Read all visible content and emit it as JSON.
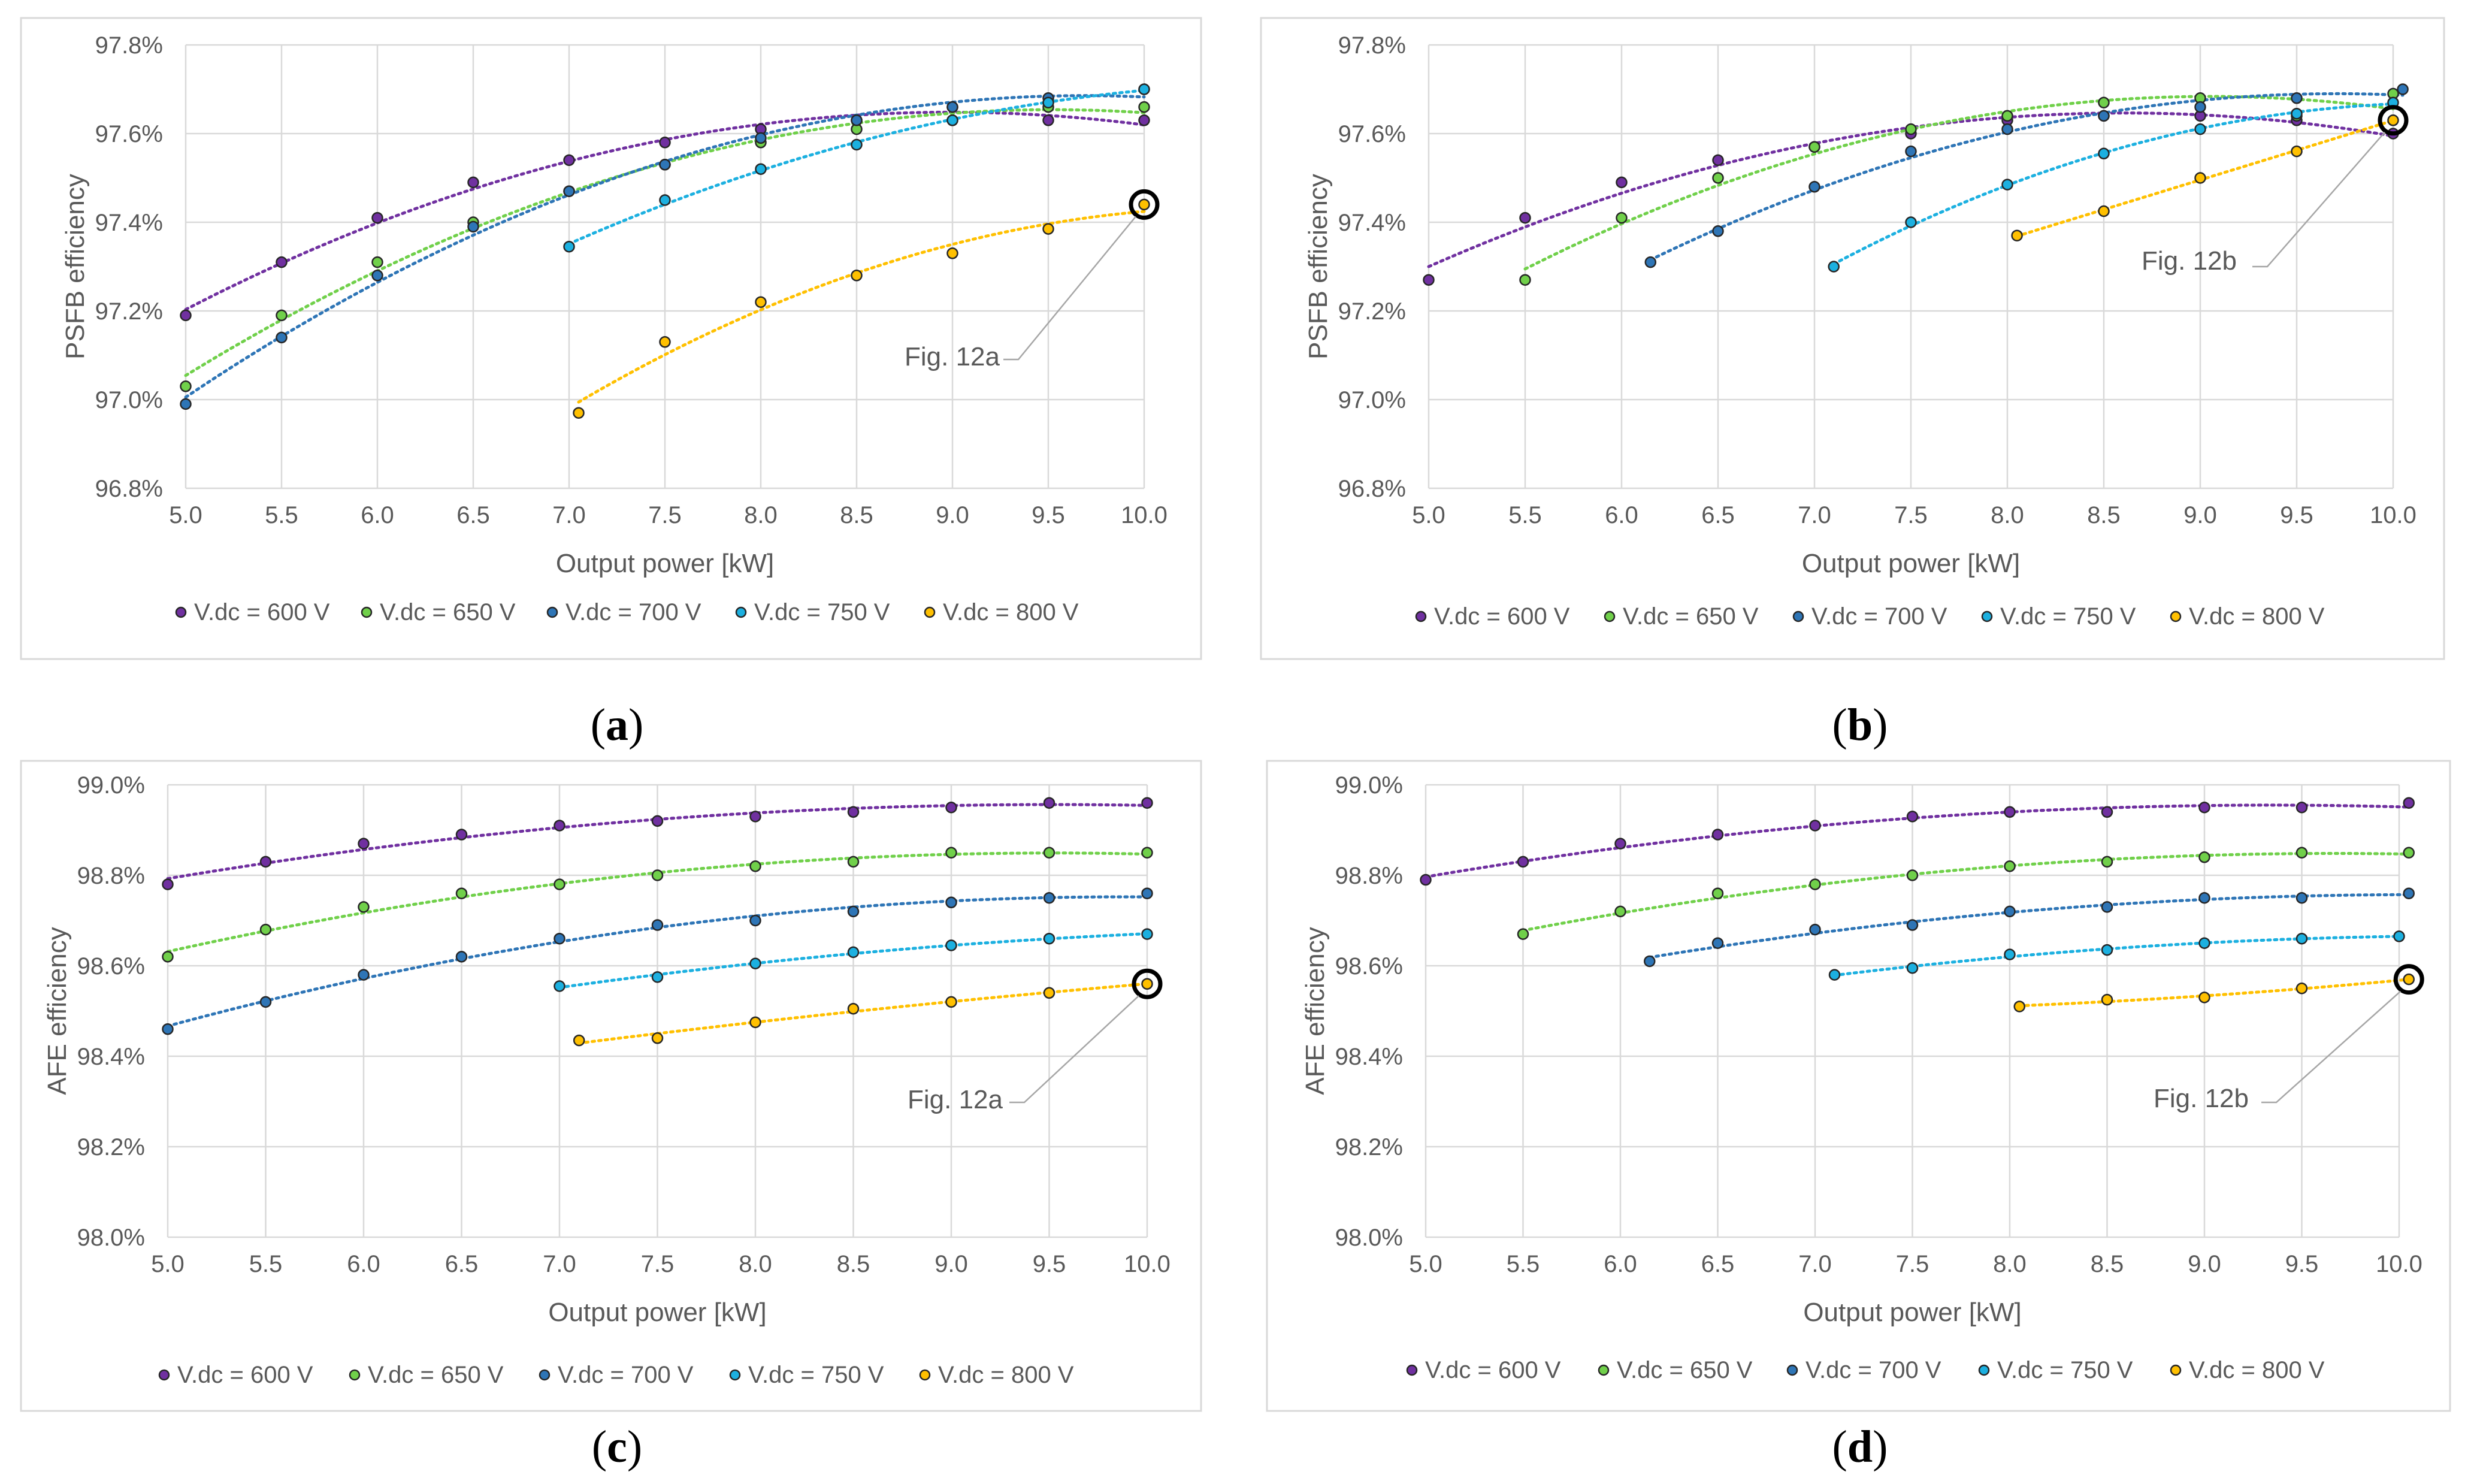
{
  "colors": {
    "V.dc = 600 V": "#7030a0",
    "V.dc = 650 V": "#70d04a",
    "V.dc = 700 V": "#2e75b6",
    "V.dc = 750 V": "#1cb0e0",
    "V.dc = 800 V": "#ffc000"
  },
  "chart_data": [
    {
      "id": "a",
      "type": "scatter",
      "caption": "a",
      "xlabel": "Output power [kW]",
      "ylabel": "PSFB efficiency",
      "xlim": [
        5.0,
        10.0
      ],
      "ylim": [
        96.8,
        97.8
      ],
      "xticks": [
        "5.0",
        "5.5",
        "6.0",
        "6.5",
        "7.0",
        "7.5",
        "8.0",
        "8.5",
        "9.0",
        "9.5",
        "10.0"
      ],
      "yticks": [
        "96.8%",
        "97.0%",
        "97.2%",
        "97.4%",
        "97.6%",
        "97.8%"
      ],
      "legend": [
        "V.dc = 600 V",
        "V.dc = 650 V",
        "V.dc = 700 V",
        "V.dc = 750 V",
        "V.dc = 800 V"
      ],
      "annotation": {
        "text": "Fig. 12a",
        "x": 10.0,
        "y": 97.44
      },
      "series": [
        {
          "name": "V.dc = 600 V",
          "x": [
            5.0,
            5.5,
            6.0,
            6.5,
            7.0,
            7.5,
            8.0,
            8.5,
            9.0,
            9.5,
            10.0
          ],
          "y": [
            97.19,
            97.31,
            97.41,
            97.49,
            97.54,
            97.58,
            97.61,
            97.63,
            97.66,
            97.63,
            97.63
          ]
        },
        {
          "name": "V.dc = 650 V",
          "x": [
            5.0,
            5.5,
            6.0,
            6.5,
            7.0,
            7.5,
            8.0,
            8.5,
            9.0,
            9.5,
            10.0
          ],
          "y": [
            97.03,
            97.19,
            97.31,
            97.4,
            97.47,
            97.53,
            97.58,
            97.61,
            97.63,
            97.66,
            97.66
          ]
        },
        {
          "name": "V.dc = 700 V",
          "x": [
            5.0,
            5.5,
            6.0,
            6.5,
            7.0,
            7.5,
            8.0,
            8.5,
            9.0,
            9.5,
            10.0
          ],
          "y": [
            96.99,
            97.14,
            97.28,
            97.39,
            97.47,
            97.53,
            97.59,
            97.63,
            97.66,
            97.68,
            97.7
          ]
        },
        {
          "name": "V.dc = 750 V",
          "x": [
            7.0,
            7.5,
            8.0,
            8.5,
            9.0,
            9.5,
            10.0
          ],
          "y": [
            97.345,
            97.45,
            97.52,
            97.575,
            97.63,
            97.67,
            97.7
          ]
        },
        {
          "name": "V.dc = 800 V",
          "x": [
            7.05,
            7.5,
            8.0,
            8.5,
            9.0,
            9.5,
            10.0
          ],
          "y": [
            96.97,
            97.13,
            97.22,
            97.28,
            97.33,
            97.385,
            97.44
          ]
        }
      ]
    },
    {
      "id": "b",
      "type": "scatter",
      "caption": "b",
      "xlabel": "Output power [kW]",
      "ylabel": "PSFB efficiency",
      "xlim": [
        5.0,
        10.0
      ],
      "ylim": [
        96.8,
        97.8
      ],
      "xticks": [
        "5.0",
        "5.5",
        "6.0",
        "6.5",
        "7.0",
        "7.5",
        "8.0",
        "8.5",
        "9.0",
        "9.5",
        "10.0"
      ],
      "yticks": [
        "96.8%",
        "97.0%",
        "97.2%",
        "97.4%",
        "97.6%",
        "97.8%"
      ],
      "legend": [
        "V.dc = 600 V",
        "V.dc = 650 V",
        "V.dc = 700 V",
        "V.dc = 750 V",
        "V.dc = 800 V"
      ],
      "annotation": {
        "text": "Fig. 12b",
        "x": 10.0,
        "y": 97.63
      },
      "series": [
        {
          "name": "V.dc = 600 V",
          "x": [
            5.0,
            5.5,
            6.0,
            6.5,
            7.0,
            7.5,
            8.0,
            8.5,
            9.0,
            9.5,
            10.0
          ],
          "y": [
            97.27,
            97.41,
            97.49,
            97.54,
            97.57,
            97.6,
            97.63,
            97.64,
            97.64,
            97.63,
            97.6
          ]
        },
        {
          "name": "V.dc = 650 V",
          "x": [
            5.5,
            6.0,
            6.5,
            7.0,
            7.5,
            8.0,
            8.5,
            9.0,
            9.5,
            10.0
          ],
          "y": [
            97.27,
            97.41,
            97.5,
            97.57,
            97.61,
            97.64,
            97.67,
            97.68,
            97.64,
            97.69
          ]
        },
        {
          "name": "V.dc = 700 V",
          "x": [
            6.15,
            6.5,
            7.0,
            7.5,
            8.0,
            8.5,
            9.0,
            9.5,
            10.05
          ],
          "y": [
            97.31,
            97.38,
            97.48,
            97.56,
            97.61,
            97.64,
            97.66,
            97.68,
            97.7
          ]
        },
        {
          "name": "V.dc = 750 V",
          "x": [
            7.1,
            7.5,
            8.0,
            8.5,
            9.0,
            9.5,
            10.0
          ],
          "y": [
            97.3,
            97.4,
            97.485,
            97.555,
            97.61,
            97.645,
            97.67
          ]
        },
        {
          "name": "V.dc = 800 V",
          "x": [
            8.05,
            8.5,
            9.0,
            9.5,
            10.0
          ],
          "y": [
            97.37,
            97.425,
            97.5,
            97.56,
            97.63
          ]
        }
      ]
    },
    {
      "id": "c",
      "type": "scatter",
      "caption": "c",
      "xlabel": "Output power [kW]",
      "ylabel": "AFE efficiency",
      "xlim": [
        5.0,
        10.0
      ],
      "ylim": [
        98.0,
        99.0
      ],
      "xticks": [
        "5.0",
        "5.5",
        "6.0",
        "6.5",
        "7.0",
        "7.5",
        "8.0",
        "8.5",
        "9.0",
        "9.5",
        "10.0"
      ],
      "yticks": [
        "98.0%",
        "98.2%",
        "98.4%",
        "98.6%",
        "98.8%",
        "99.0%"
      ],
      "legend": [
        "V.dc = 600 V",
        "V.dc = 650 V",
        "V.dc = 700 V",
        "V.dc = 750 V",
        "V.dc = 800 V"
      ],
      "annotation": {
        "text": "Fig. 12a",
        "x": 10.0,
        "y": 98.56
      },
      "series": [
        {
          "name": "V.dc = 600 V",
          "x": [
            5.0,
            5.5,
            6.0,
            6.5,
            7.0,
            7.5,
            8.0,
            8.5,
            9.0,
            9.5,
            10.0
          ],
          "y": [
            98.78,
            98.83,
            98.87,
            98.89,
            98.91,
            98.92,
            98.93,
            98.94,
            98.95,
            98.96,
            98.96
          ]
        },
        {
          "name": "V.dc = 650 V",
          "x": [
            5.0,
            5.5,
            6.0,
            6.5,
            7.0,
            7.5,
            8.0,
            8.5,
            9.0,
            9.5,
            10.0
          ],
          "y": [
            98.62,
            98.68,
            98.73,
            98.76,
            98.78,
            98.8,
            98.82,
            98.83,
            98.85,
            98.85,
            98.85
          ]
        },
        {
          "name": "V.dc = 700 V",
          "x": [
            5.0,
            5.5,
            6.0,
            6.5,
            7.0,
            7.5,
            8.0,
            8.5,
            9.0,
            9.5,
            10.0
          ],
          "y": [
            98.46,
            98.52,
            98.58,
            98.62,
            98.66,
            98.69,
            98.7,
            98.72,
            98.74,
            98.75,
            98.76
          ]
        },
        {
          "name": "V.dc = 750 V",
          "x": [
            7.0,
            7.5,
            8.0,
            8.5,
            9.0,
            9.5,
            10.0
          ],
          "y": [
            98.555,
            98.575,
            98.605,
            98.63,
            98.645,
            98.66,
            98.67
          ]
        },
        {
          "name": "V.dc = 800 V",
          "x": [
            7.1,
            7.5,
            8.0,
            8.5,
            9.0,
            9.5,
            10.0
          ],
          "y": [
            98.435,
            98.44,
            98.475,
            98.505,
            98.52,
            98.54,
            98.56
          ]
        }
      ]
    },
    {
      "id": "d",
      "type": "scatter",
      "caption": "d",
      "xlabel": "Output power [kW]",
      "ylabel": "AFE efficiency",
      "xlim": [
        5.0,
        10.0
      ],
      "ylim": [
        98.0,
        99.0
      ],
      "xticks": [
        "5.0",
        "5.5",
        "6.0",
        "6.5",
        "7.0",
        "7.5",
        "8.0",
        "8.5",
        "9.0",
        "9.5",
        "10.0"
      ],
      "yticks": [
        "98.0%",
        "98.2%",
        "98.4%",
        "98.6%",
        "98.8%",
        "99.0%"
      ],
      "legend": [
        "V.dc = 600 V",
        "V.dc = 650 V",
        "V.dc = 700 V",
        "V.dc = 750 V",
        "V.dc = 800 V"
      ],
      "annotation": {
        "text": "Fig. 12b",
        "x": 10.05,
        "y": 98.57
      },
      "series": [
        {
          "name": "V.dc = 600 V",
          "x": [
            5.0,
            5.5,
            6.0,
            6.5,
            7.0,
            7.5,
            8.0,
            8.5,
            9.0,
            9.5,
            10.05
          ],
          "y": [
            98.79,
            98.83,
            98.87,
            98.89,
            98.91,
            98.93,
            98.94,
            98.94,
            98.95,
            98.95,
            98.96
          ]
        },
        {
          "name": "V.dc = 650 V",
          "x": [
            5.5,
            6.0,
            6.5,
            7.0,
            7.5,
            8.0,
            8.5,
            9.0,
            9.5,
            10.05
          ],
          "y": [
            98.67,
            98.72,
            98.76,
            98.78,
            98.8,
            98.82,
            98.83,
            98.84,
            98.85,
            98.85
          ]
        },
        {
          "name": "V.dc = 700 V",
          "x": [
            6.15,
            6.5,
            7.0,
            7.5,
            8.0,
            8.5,
            9.0,
            9.5,
            10.05
          ],
          "y": [
            98.61,
            98.65,
            98.68,
            98.69,
            98.72,
            98.73,
            98.75,
            98.75,
            98.76
          ]
        },
        {
          "name": "V.dc = 750 V",
          "x": [
            7.1,
            7.5,
            8.0,
            8.5,
            9.0,
            9.5,
            10.0
          ],
          "y": [
            98.58,
            98.595,
            98.625,
            98.635,
            98.65,
            98.66,
            98.665
          ]
        },
        {
          "name": "V.dc = 800 V",
          "x": [
            8.05,
            8.5,
            9.0,
            9.5,
            10.05
          ],
          "y": [
            98.51,
            98.525,
            98.53,
            98.55,
            98.57
          ]
        }
      ]
    }
  ]
}
